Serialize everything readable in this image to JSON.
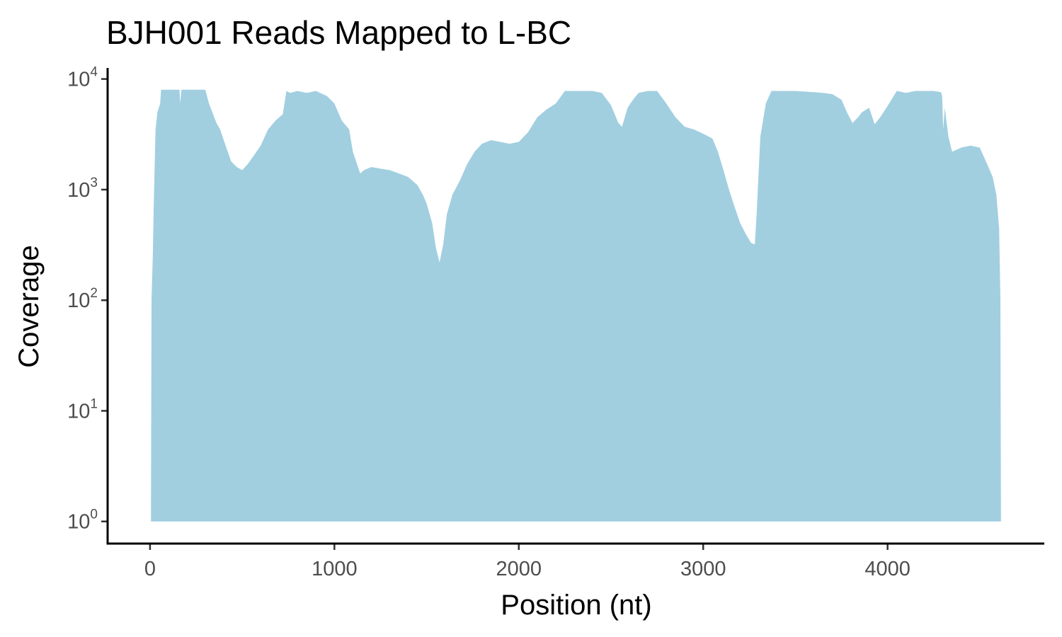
{
  "chart_data": {
    "type": "area",
    "title": "BJH001 Reads Mapped to L-BC",
    "xlabel": "Position (nt)",
    "ylabel": "Coverage",
    "xlim": [
      -230,
      4850
    ],
    "ylim_log10": [
      -0.2,
      4.1
    ],
    "y_scale": "log10",
    "grid": false,
    "legend": "none",
    "fill_color": "#a1cfe0",
    "x_ticks": [
      {
        "value": 0,
        "label": "0"
      },
      {
        "value": 1000,
        "label": "1000"
      },
      {
        "value": 2000,
        "label": "2000"
      },
      {
        "value": 3000,
        "label": "3000"
      },
      {
        "value": 4000,
        "label": "4000"
      }
    ],
    "y_ticks": [
      {
        "exp": 0,
        "base": "10",
        "sup": "0"
      },
      {
        "exp": 1,
        "base": "10",
        "sup": "1"
      },
      {
        "exp": 2,
        "base": "10",
        "sup": "2"
      },
      {
        "exp": 3,
        "base": "10",
        "sup": "3"
      },
      {
        "exp": 4,
        "base": "10",
        "sup": "4"
      }
    ],
    "series": [
      {
        "x": [
          5,
          8,
          15,
          20,
          30,
          40,
          55,
          60,
          75,
          160,
          163,
          170,
          210,
          300,
          320,
          360,
          380,
          410,
          440,
          470,
          500,
          530,
          560,
          600,
          640,
          680,
          720,
          740,
          760,
          800,
          850,
          900,
          960,
          1000,
          1040,
          1080,
          1100,
          1140,
          1160,
          1200,
          1250,
          1300,
          1350,
          1400,
          1450,
          1480,
          1500,
          1530,
          1550,
          1570,
          1590,
          1610,
          1640,
          1680,
          1720,
          1760,
          1800,
          1850,
          1900,
          1950,
          2000,
          2050,
          2100,
          2150,
          2200,
          2250,
          2300,
          2350,
          2400,
          2450,
          2500,
          2540,
          2560,
          2590,
          2620,
          2650,
          2700,
          2750,
          2800,
          2850,
          2900,
          2950,
          3000,
          3050,
          3080,
          3110,
          3140,
          3170,
          3200,
          3230,
          3260,
          3280,
          3290,
          3310,
          3340,
          3370,
          3400,
          3450,
          3500,
          3550,
          3600,
          3650,
          3700,
          3750,
          3780,
          3810,
          3840,
          3860,
          3900,
          3930,
          3960,
          4000,
          4050,
          4100,
          4150,
          4200,
          4250,
          4290,
          4296,
          4302,
          4310,
          4330,
          4350,
          4400,
          4450,
          4500,
          4540,
          4570,
          4590,
          4605,
          4612,
          4615
        ],
        "y": [
          1,
          100,
          250,
          700,
          3500,
          5000,
          6000,
          8000,
          8000,
          8000,
          6000,
          8000,
          8000,
          8000,
          6000,
          4000,
          3500,
          2500,
          1800,
          1600,
          1500,
          1700,
          2000,
          2500,
          3500,
          4200,
          4800,
          7800,
          7500,
          7800,
          7500,
          7800,
          7000,
          6000,
          4200,
          3500,
          2200,
          1400,
          1500,
          1600,
          1550,
          1500,
          1400,
          1300,
          1100,
          900,
          750,
          500,
          300,
          220,
          320,
          600,
          900,
          1200,
          1700,
          2200,
          2600,
          2800,
          2700,
          2600,
          2700,
          3300,
          4500,
          5300,
          6000,
          7800,
          7800,
          7800,
          7800,
          7500,
          5800,
          4000,
          3700,
          5500,
          6500,
          7500,
          7800,
          7800,
          6000,
          4500,
          3700,
          3500,
          3200,
          2900,
          2200,
          1500,
          1000,
          700,
          500,
          400,
          330,
          320,
          600,
          3000,
          6000,
          7800,
          7800,
          7800,
          7800,
          7700,
          7600,
          7500,
          7300,
          6500,
          5000,
          4000,
          4500,
          5000,
          5500,
          3900,
          4500,
          5700,
          7800,
          7500,
          7800,
          7800,
          7800,
          7600,
          7000,
          3500,
          5500,
          3000,
          2200,
          2400,
          2500,
          2400,
          1700,
          1300,
          900,
          450,
          100,
          1
        ]
      }
    ]
  }
}
